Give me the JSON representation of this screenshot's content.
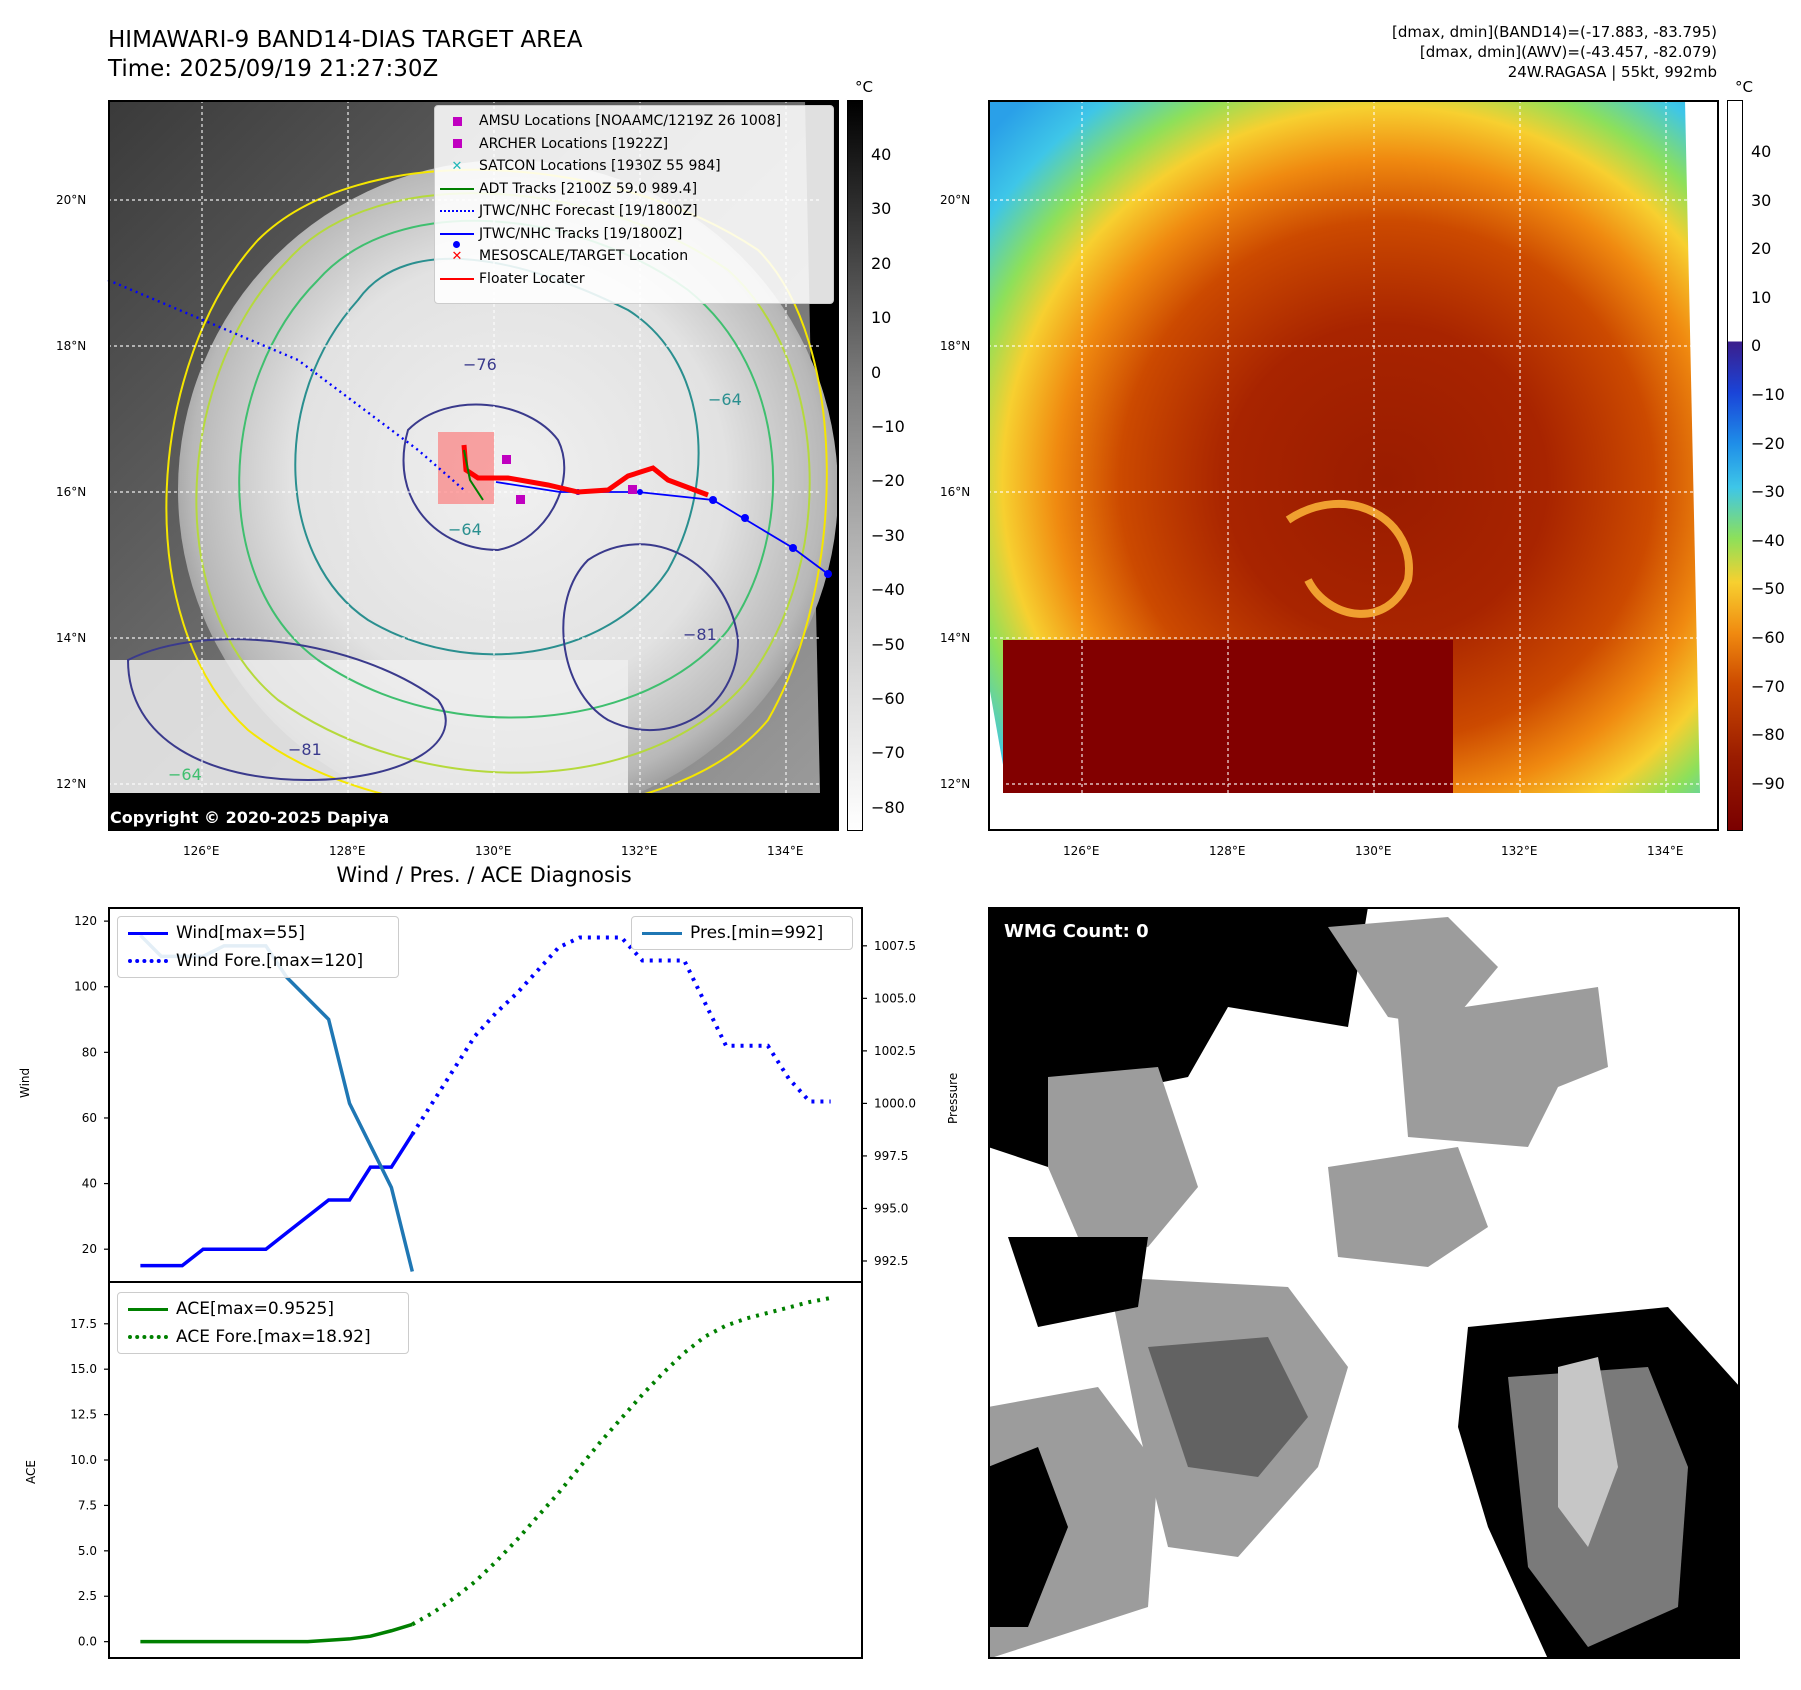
{
  "header": {
    "title_line1": "HIMAWARI-9 BAND14-DIAS TARGET AREA",
    "title_line2": "Time: 2025/09/19 21:27:30Z",
    "info_line1": "[dmax, dmin](BAND14)=(-17.883, -83.795)",
    "info_line2": "[dmax, dmin](AWV)=(-43.457, -82.079)",
    "info_line3": "24W.RAGASA | 55kt, 992mb"
  },
  "map_axes": {
    "lon_labels": [
      "126°E",
      "128°E",
      "130°E",
      "132°E",
      "134°E"
    ],
    "lat_labels": [
      "20°N",
      "18°N",
      "16°N",
      "14°N",
      "12°N"
    ]
  },
  "ir_map": {
    "copyright": "Copyright © 2020-2025 Dapiya",
    "colorbar_unit": "°C",
    "colorbar_ticks": [
      "40",
      "30",
      "20",
      "10",
      "0",
      "−10",
      "−20",
      "−30",
      "−40",
      "−50",
      "−60",
      "−70",
      "−80"
    ],
    "contour_labels": [
      "−76",
      "−64",
      "−64",
      "−81",
      "−81",
      "−64"
    ],
    "legend": [
      {
        "label": "AMSU Locations [NOAAMC/1219Z 26 1008]",
        "symbol": "square",
        "color": "#c000c0"
      },
      {
        "label": "ARCHER Locations [1922Z]",
        "symbol": "square",
        "color": "#c000c0"
      },
      {
        "label": "SATCON Locations [1930Z 55 984]",
        "symbol": "x",
        "color": "#20b8b8"
      },
      {
        "label": "ADT Tracks [2100Z 59.0 989.4]",
        "symbol": "line",
        "color": "#008000"
      },
      {
        "label": "JTWC/NHC Forecast [19/1800Z]",
        "symbol": "dotted",
        "color": "#0000ff"
      },
      {
        "label": "JTWC/NHC Tracks [19/1800Z]",
        "symbol": "line-dot",
        "color": "#0000ff"
      },
      {
        "label": "MESOSCALE/TARGET Location",
        "symbol": "x",
        "color": "#ff0000"
      },
      {
        "label": "Floater Locater",
        "symbol": "line",
        "color": "#ff0000"
      }
    ]
  },
  "awv_map": {
    "colorbar_unit": "°C",
    "colorbar_ticks": [
      "40",
      "30",
      "20",
      "10",
      "0",
      "−10",
      "−20",
      "−30",
      "−40",
      "−50",
      "−60",
      "−70",
      "−80",
      "−90"
    ]
  },
  "diagnosis": {
    "title": "Wind / Pres. / ACE Diagnosis",
    "wind_ylabel": "Wind",
    "pres_ylabel": "Pressure",
    "ace_ylabel": "ACE",
    "wind_ticks": [
      "120",
      "100",
      "80",
      "60",
      "40",
      "20"
    ],
    "pres_ticks": [
      "1007.5",
      "1005.0",
      "1002.5",
      "1000.0",
      "997.5",
      "995.0",
      "992.5"
    ],
    "ace_ticks": [
      "17.5",
      "15.0",
      "12.5",
      "10.0",
      "7.5",
      "5.0",
      "2.5",
      "0.0"
    ],
    "legend_wind": "Wind[max=55]",
    "legend_wind_fore": "Wind Fore.[max=120]",
    "legend_pres": "Pres.[min=992]",
    "legend_ace": "ACE[max=0.9525]",
    "legend_ace_fore": "ACE Fore.[max=18.92]",
    "colors": {
      "wind": "#0000ff",
      "pres": "#1f77b4",
      "ace": "#008000"
    }
  },
  "wmg": {
    "label": "WMG Count: 0"
  },
  "chart_data": [
    {
      "type": "line",
      "title": "Wind / Pres. / ACE Diagnosis",
      "ylabel": "Wind",
      "ylim": [
        10,
        124
      ],
      "series": [
        {
          "name": "Wind[max=55]",
          "x": [
            0,
            1,
            2,
            3,
            4,
            5,
            6,
            7,
            8,
            9,
            10,
            11,
            12,
            13
          ],
          "values": [
            15,
            15,
            15,
            20,
            20,
            20,
            20,
            25,
            30,
            35,
            35,
            45,
            45,
            55
          ]
        },
        {
          "name": "Wind Fore.[max=120]",
          "x": [
            13,
            14,
            15,
            16,
            17,
            18,
            19,
            20,
            21,
            22,
            23,
            24,
            25,
            26,
            27,
            28,
            29,
            30,
            31,
            32,
            33
          ],
          "values": [
            55,
            65,
            75,
            85,
            92,
            98,
            105,
            112,
            115,
            115,
            115,
            108,
            108,
            108,
            95,
            82,
            82,
            82,
            72,
            65,
            65
          ]
        }
      ]
    },
    {
      "type": "line",
      "ylabel": "Pressure",
      "ylim": [
        991.5,
        1009.3
      ],
      "series": [
        {
          "name": "Pres.[min=992]",
          "x": [
            0,
            1,
            2,
            3,
            4,
            5,
            6,
            7,
            8,
            9,
            10,
            11,
            12,
            13
          ],
          "values": [
            1008,
            1007,
            1007,
            1007,
            1007.5,
            1007.5,
            1007.5,
            1006,
            1005,
            1004,
            1000,
            998,
            996,
            992
          ]
        }
      ]
    },
    {
      "type": "line",
      "ylabel": "ACE",
      "ylim": [
        -0.9,
        19.8
      ],
      "series": [
        {
          "name": "ACE[max=0.9525]",
          "x": [
            0,
            2,
            4,
            6,
            8,
            10,
            11,
            12,
            13
          ],
          "values": [
            0,
            0,
            0,
            0,
            0,
            0.15,
            0.3,
            0.6,
            0.95
          ]
        },
        {
          "name": "ACE Fore.[max=18.92]",
          "x": [
            13,
            14,
            15,
            16,
            17,
            18,
            19,
            20,
            21,
            22,
            23,
            24,
            25,
            26,
            27,
            28,
            29,
            30,
            31,
            32,
            33
          ],
          "values": [
            0.95,
            1.6,
            2.4,
            3.3,
            4.4,
            5.6,
            6.9,
            8.2,
            9.6,
            11.0,
            12.3,
            13.6,
            14.8,
            15.9,
            16.8,
            17.4,
            17.8,
            18.1,
            18.4,
            18.7,
            18.92
          ]
        }
      ]
    }
  ]
}
